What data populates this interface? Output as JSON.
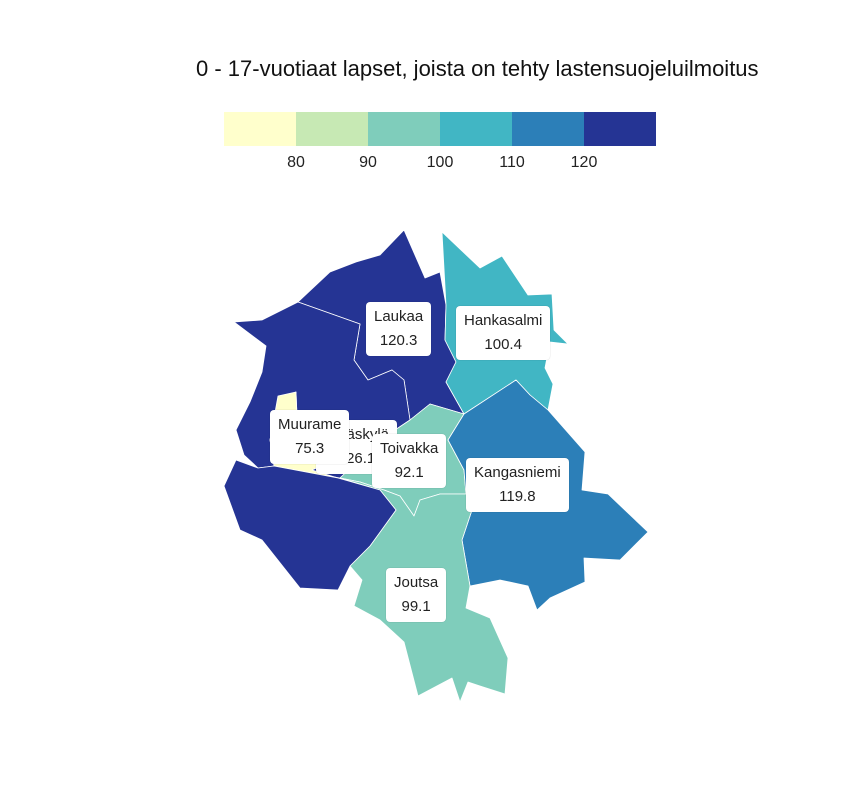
{
  "title": "0 - 17-vuotiaat lapset, joista on tehty lastensuojeluilmoitus",
  "legend": {
    "colors": [
      "#ffffcc",
      "#c7e9b4",
      "#7fcdbb",
      "#41b6c4",
      "#2c7fb8",
      "#253494"
    ],
    "ticks": [
      "80",
      "90",
      "100",
      "110",
      "120"
    ]
  },
  "regions": [
    {
      "name": "Laukaa",
      "value": "120.3",
      "color": "#253494"
    },
    {
      "name": "Hankasalmi",
      "value": "100.4",
      "color": "#41b6c4"
    },
    {
      "name": "Muurame",
      "value": "75.3",
      "color": "#ffffcc"
    },
    {
      "name": "Jyväskylä",
      "value": "126.1",
      "color": "#253494"
    },
    {
      "name": "Toivakka",
      "value": "92.1",
      "color": "#7fcdbb"
    },
    {
      "name": "Kangasniemi",
      "value": "119.8",
      "color": "#2c7fb8"
    },
    {
      "name": "Joutsa",
      "value": "99.1",
      "color": "#7fcdbb"
    }
  ]
}
